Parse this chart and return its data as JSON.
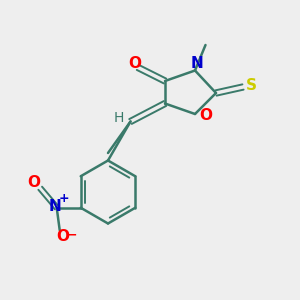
{
  "background_color": "#eeeeee",
  "bond_color": "#3a7a6a",
  "text_colors": {
    "O": "#ff0000",
    "N": "#0000cc",
    "S": "#cccc00",
    "C": "#3a7a6a",
    "H": "#3a7a6a",
    "NO2_N": "#0000cc",
    "NO2_O": "#ff0000"
  },
  "figsize": [
    3.0,
    3.0
  ],
  "dpi": 100
}
